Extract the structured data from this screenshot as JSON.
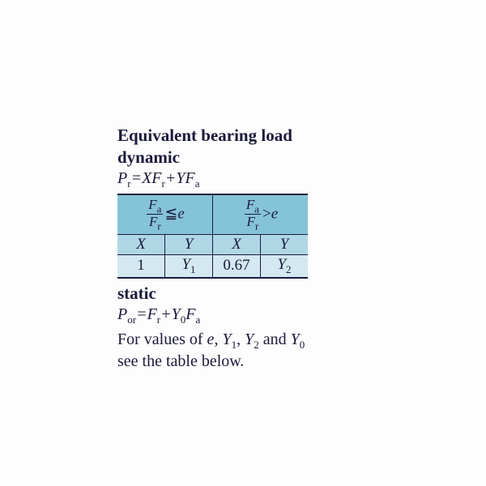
{
  "title": "Equivalent bearing load",
  "dynamic": {
    "label": "dynamic",
    "formula_lhs": "P",
    "formula_lhs_sub": "r",
    "formula_eq": "=",
    "formula_x": "X",
    "formula_fr": "F",
    "formula_fr_sub": "r",
    "formula_plus": "+",
    "formula_y": "Y",
    "formula_fa": "F",
    "formula_fa_sub": "a"
  },
  "table": {
    "frac_num": "F",
    "frac_num_sub": "a",
    "frac_den": "F",
    "frac_den_sub": "r",
    "le": "≦",
    "gt": ">",
    "e": "e",
    "X": "X",
    "Y": "Y",
    "v1": "1",
    "Y1": "Y",
    "Y1_sub": "1",
    "v067": "0.67",
    "Y2": "Y",
    "Y2_sub": "2",
    "colors": {
      "hdr1": "#85c3d9",
      "hdr2": "#b0d7e6",
      "row3": "#d3e8f0"
    }
  },
  "static": {
    "label": "static",
    "lhs": "P",
    "lhs_sub": "or",
    "eq": "=",
    "fr": "F",
    "fr_sub": "r",
    "plus": "+",
    "y0": "Y",
    "y0_sub": "0",
    "fa": "F",
    "fa_sub": "a"
  },
  "note": {
    "part1": "For values of ",
    "e": "e",
    "c1": ", ",
    "Y1": "Y",
    "Y1_sub": "1",
    "c2": ", ",
    "Y2": "Y",
    "Y2_sub": "2",
    "and": " and ",
    "Y0": "Y",
    "Y0_sub": "0",
    "part2": "see the table below."
  }
}
